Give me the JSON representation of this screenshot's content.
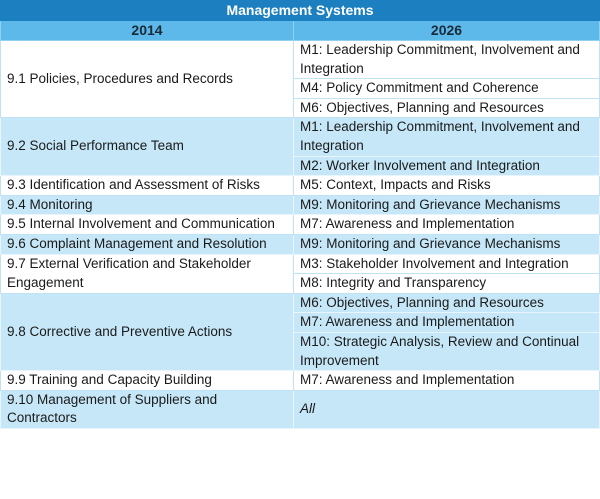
{
  "title": "Management Systems",
  "columns": [
    "2014",
    "2026"
  ],
  "rows": [
    {
      "left": "9.1 Policies, Procedures and Records",
      "right": [
        "M1: Leadership Commitment, Involvement and Integration",
        "M4: Policy Commitment and Coherence",
        "M6: Objectives, Planning and Resources"
      ]
    },
    {
      "left": "9.2 Social Performance Team",
      "right": [
        "M1: Leadership Commitment, Involvement and Integration",
        "M2: Worker Involvement and Integration"
      ]
    },
    {
      "left": "9.3 Identification and Assessment of Risks",
      "right": [
        "M5: Context, Impacts and Risks"
      ]
    },
    {
      "left": "9.4 Monitoring",
      "right": [
        "M9: Monitoring and Grievance Mechanisms"
      ]
    },
    {
      "left": "9.5 Internal Involvement and Communication",
      "right": [
        "M7: Awareness and Implementation"
      ]
    },
    {
      "left": "9.6 Complaint Management and Resolution",
      "right": [
        "M9: Monitoring and Grievance Mechanisms"
      ]
    },
    {
      "left": "9.7 External Verification and Stakeholder Engagement",
      "right": [
        "M3: Stakeholder Involvement and Integration",
        "M8: Integrity and Transparency"
      ]
    },
    {
      "left": "9.8 Corrective and Preventive Actions",
      "right": [
        "M6: Objectives, Planning and Resources",
        "M7: Awareness and Implementation",
        "M10: Strategic Analysis, Review and Continual Improvement"
      ]
    },
    {
      "left": "9.9 Training and Capacity Building",
      "right": [
        "M7: Awareness and Implementation"
      ]
    },
    {
      "left": "9.10 Management of Suppliers and Contractors",
      "right": [
        "All"
      ]
    }
  ],
  "colors": {
    "title_bg": "#1b7fc0",
    "header_bg": "#5cb9e9",
    "alt_row_bg": "#c6e7f8"
  }
}
